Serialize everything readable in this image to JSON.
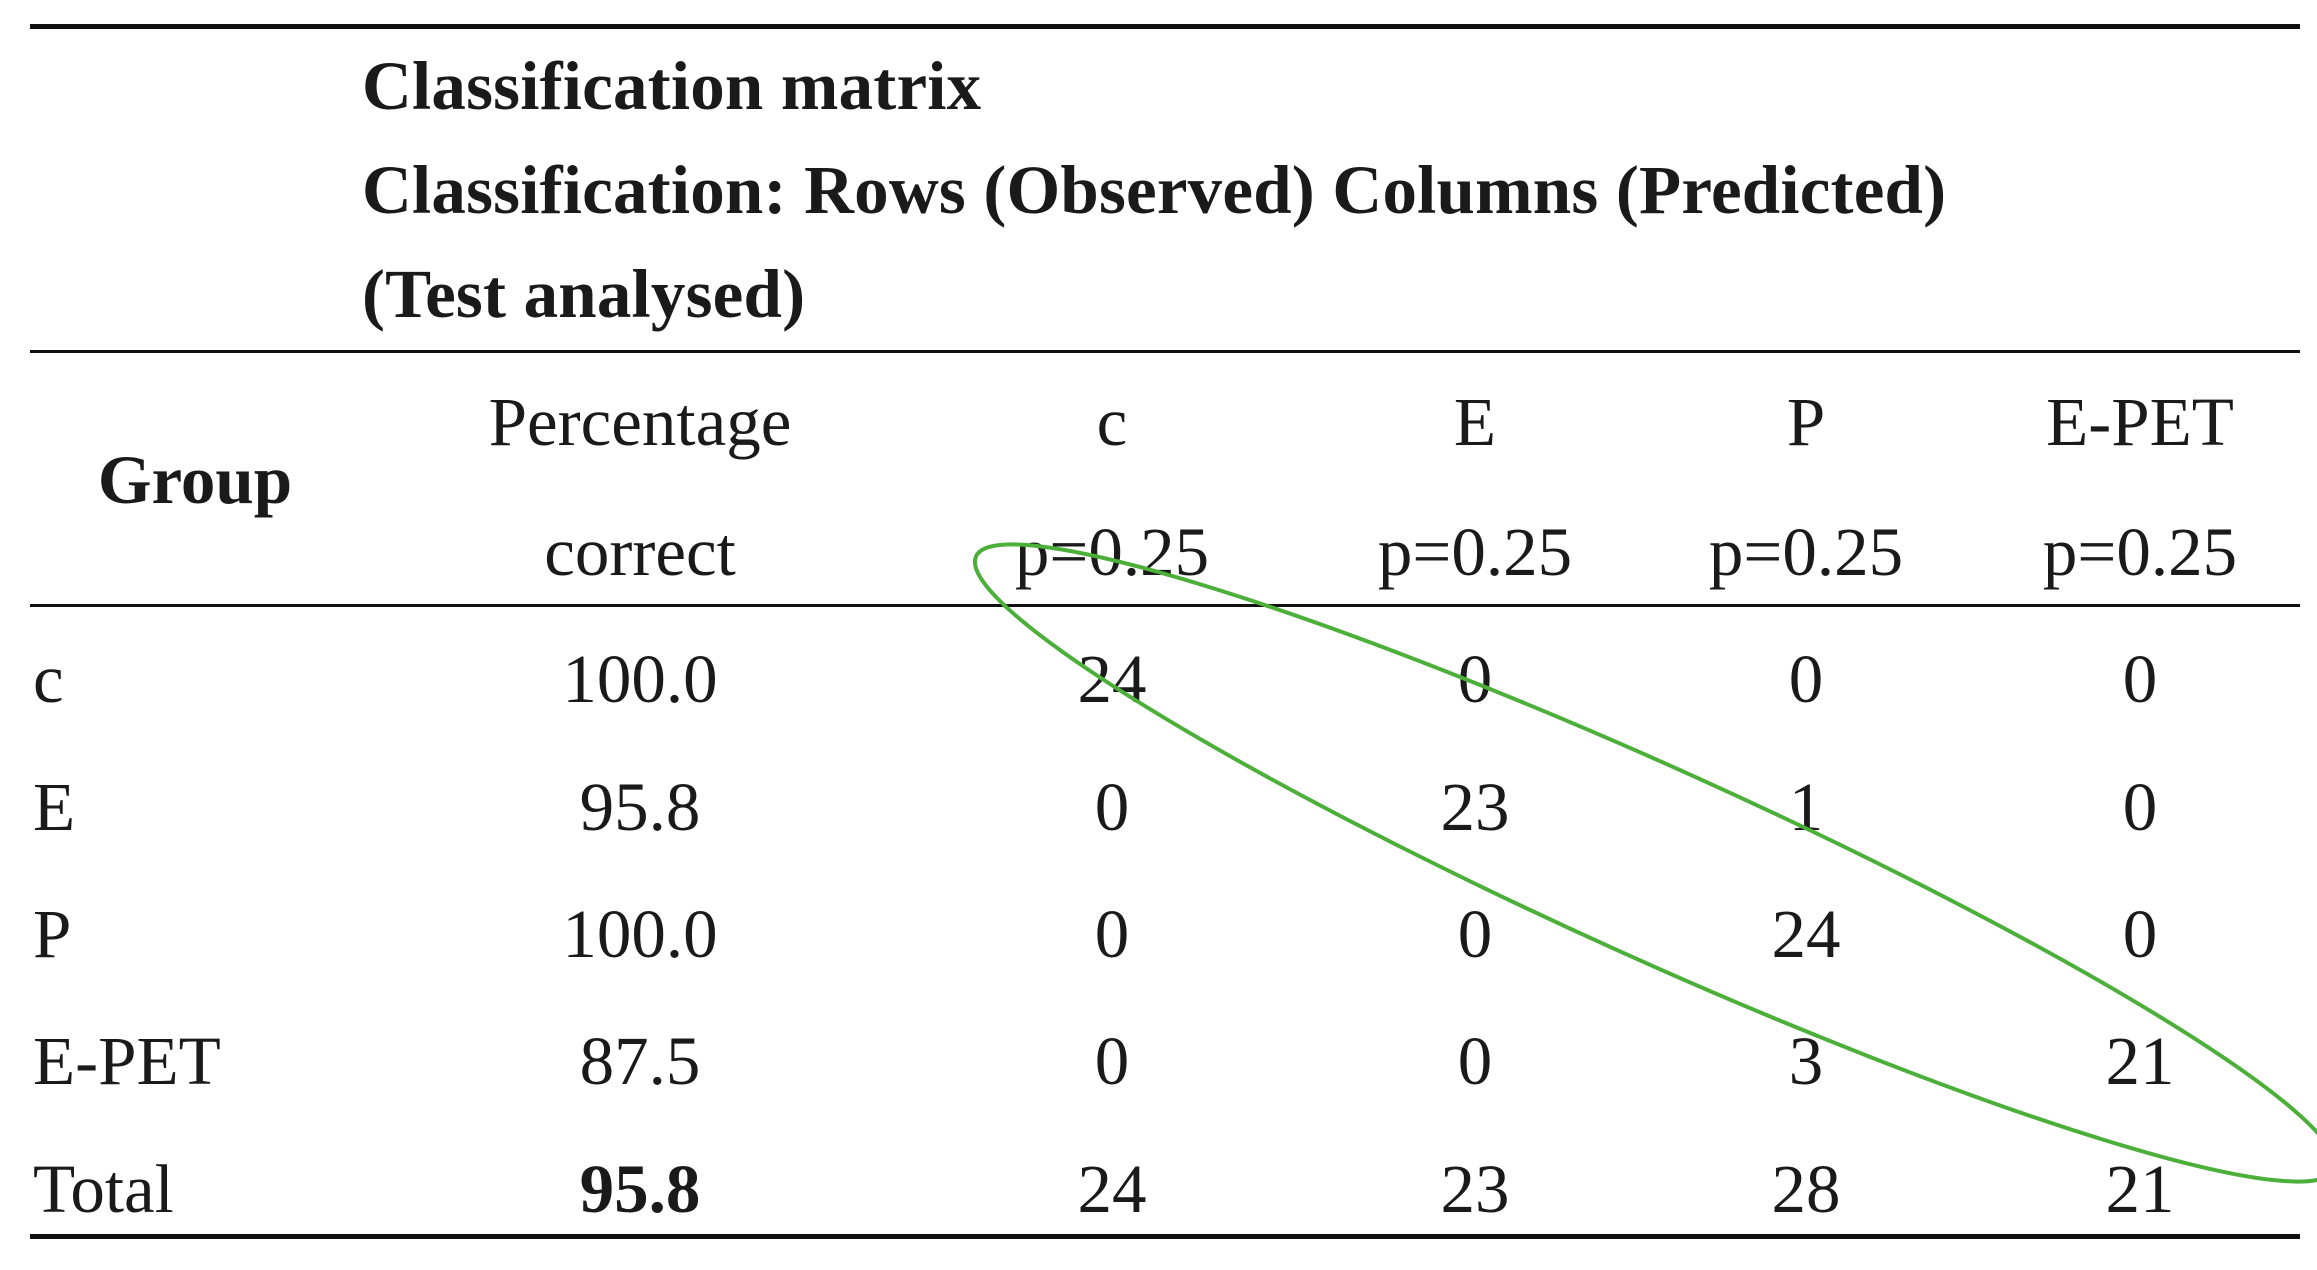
{
  "title": {
    "line1": "Classification matrix",
    "line2": "Classification: Rows (Observed) Columns (Predicted)",
    "line3": "(Test analysed)"
  },
  "header": {
    "group": "Group",
    "percent_line1": "Percentage",
    "percent_line2": "correct",
    "columns": [
      {
        "name": "c",
        "prob": "p=0.25"
      },
      {
        "name": "E",
        "prob": "p=0.25"
      },
      {
        "name": "P",
        "prob": "p=0.25"
      },
      {
        "name": "E-PET",
        "prob": "p=0.25"
      }
    ]
  },
  "rows": [
    {
      "group": "c",
      "percent": "100.0",
      "values": [
        "24",
        "0",
        "0",
        "0"
      ]
    },
    {
      "group": "E",
      "percent": "95.8",
      "values": [
        "0",
        "23",
        "1",
        "0"
      ]
    },
    {
      "group": "P",
      "percent": "100.0",
      "values": [
        "0",
        "0",
        "24",
        "0"
      ]
    },
    {
      "group": "E-PET",
      "percent": "87.5",
      "values": [
        "0",
        "0",
        "3",
        "21"
      ]
    }
  ],
  "total": {
    "group": "Total",
    "percent": "95.8",
    "values": [
      "24",
      "23",
      "28",
      "21"
    ]
  },
  "colors": {
    "text": "#1a1a1a",
    "rule": "#111111",
    "highlight_ellipse": "#4caf3a"
  }
}
